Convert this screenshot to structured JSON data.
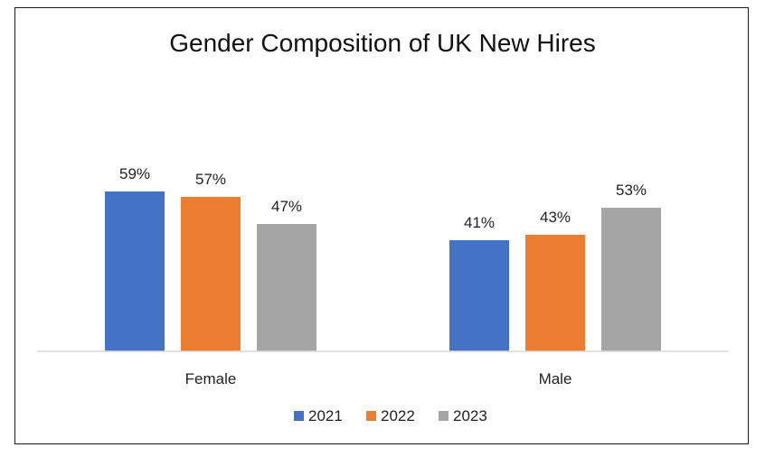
{
  "chart_data": {
    "type": "bar",
    "title": "Gender Composition of UK New Hires",
    "categories": [
      "Female",
      "Male"
    ],
    "series": [
      {
        "name": "2021",
        "values": [
          59,
          41
        ],
        "labels": [
          "59%",
          "41%"
        ],
        "color": "#4472C4"
      },
      {
        "name": "2022",
        "values": [
          57,
          43
        ],
        "labels": [
          "57%",
          "43%"
        ],
        "color": "#ED7D31"
      },
      {
        "name": "2023",
        "values": [
          47,
          53
        ],
        "labels": [
          "47%",
          "53%"
        ],
        "color": "#A5A5A5"
      }
    ],
    "ylim": [
      0,
      100
    ],
    "grid": false,
    "legend": "bottom",
    "data_labels": true
  }
}
